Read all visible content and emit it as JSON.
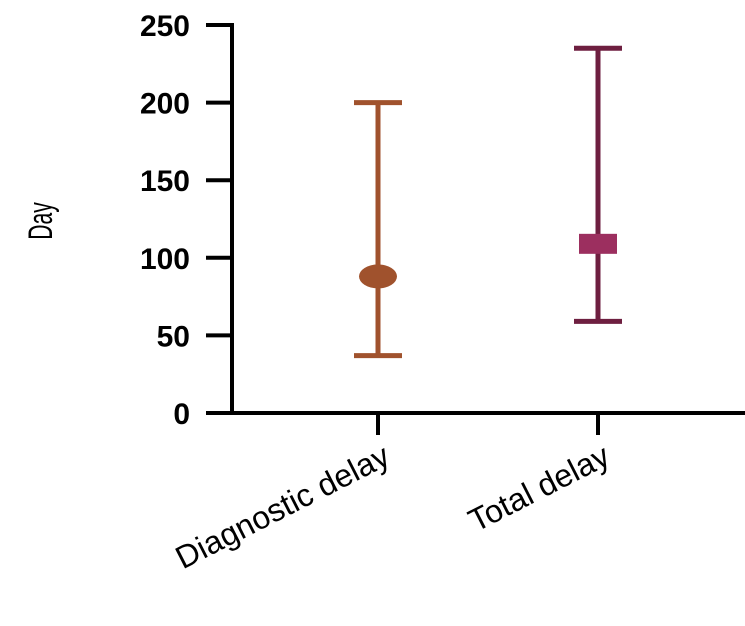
{
  "chart_data": {
    "type": "scatter",
    "ylabel": "Day",
    "ylim": [
      0,
      250
    ],
    "yticks": [
      0,
      50,
      100,
      150,
      200,
      250
    ],
    "categories": [
      "Diagnostic delay",
      "Total delay"
    ],
    "points": [
      {
        "category": "Diagnostic delay",
        "value": 88,
        "lower": 37,
        "upper": 200,
        "color": "#a0522d",
        "marker": "circle"
      },
      {
        "category": "Total delay",
        "value": 109,
        "lower": 59,
        "upper": 235,
        "color": "#6e1f40",
        "marker": "square",
        "marker_color": "#9c2f5f"
      }
    ],
    "axis_color": "#000000"
  }
}
